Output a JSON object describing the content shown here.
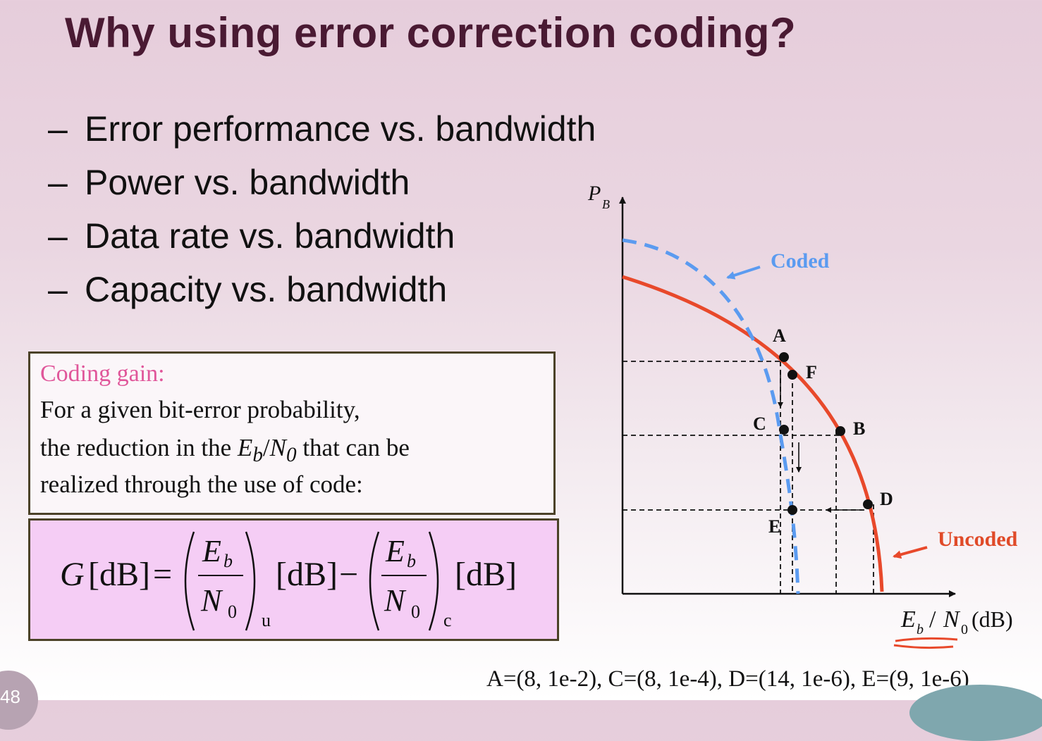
{
  "title": "Why using error correction coding?",
  "bullets": [
    {
      "dash": "–",
      "text": "Error performance vs. bandwidth"
    },
    {
      "dash": "–",
      "text": "Power vs. bandwidth"
    },
    {
      "dash": "–",
      "text": "Data rate vs. bandwidth"
    },
    {
      "dash": "–",
      "text": "Capacity vs. bandwidth"
    }
  ],
  "definition": {
    "heading": "Coding gain:",
    "line1": "For a given bit-error probability,",
    "line2_pre": "the reduction in the ",
    "line2_eb": "E",
    "line2_eb_sub": "b",
    "line2_slash": "/",
    "line2_n": "N",
    "line2_n_sub": "0",
    "line2_post": " that can be",
    "line3": "realized through the use of code:"
  },
  "formula": {
    "G": "G",
    "unit": "[dB]",
    "equals": "=",
    "minus": "−",
    "E": "E",
    "b": "b",
    "N": "N",
    "zero": "0",
    "sub_u": "u",
    "sub_c": "c"
  },
  "diagram": {
    "y_axis_main": "P",
    "y_axis_sub": "B",
    "x_axis_E": "E",
    "x_axis_b": "b",
    "x_axis_slash": "/",
    "x_axis_N": "N",
    "x_axis_zero": "0",
    "x_axis_unit": "(dB)",
    "coded_label": "Coded",
    "uncoded_label": "Uncoded",
    "points": {
      "A": "A",
      "B": "B",
      "C": "C",
      "D": "D",
      "E": "E",
      "F": "F"
    },
    "colors": {
      "coded": "#5b9bf0",
      "uncoded": "#e8492b",
      "coded_text": "#5b9bf0",
      "uncoded_text": "#e04a28"
    }
  },
  "footer": "A=(8, 1e-2), C=(8, 1e-4), D=(14, 1e-6), E=(9, 1e-6)",
  "page_number": "48"
}
